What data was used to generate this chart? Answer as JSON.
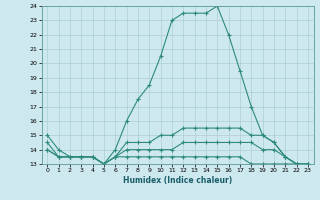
{
  "xlabel": "Humidex (Indice chaleur)",
  "x": [
    0,
    1,
    2,
    3,
    4,
    5,
    6,
    7,
    8,
    9,
    10,
    11,
    12,
    13,
    14,
    15,
    16,
    17,
    18,
    19,
    20,
    21,
    22,
    23
  ],
  "line_max": [
    15,
    14,
    13.5,
    13.5,
    13.5,
    13,
    14,
    16,
    17.5,
    18.5,
    20.5,
    23,
    23.5,
    23.5,
    23.5,
    24,
    22,
    19.5,
    17,
    15,
    14.5,
    13.5,
    13,
    13
  ],
  "line_q3": [
    14.5,
    13.5,
    13.5,
    13.5,
    13.5,
    13,
    13.5,
    14.5,
    14.5,
    14.5,
    15,
    15,
    15.5,
    15.5,
    15.5,
    15.5,
    15.5,
    15.5,
    15,
    15,
    14.5,
    13.5,
    13,
    13
  ],
  "line_med": [
    14,
    13.5,
    13.5,
    13.5,
    13.5,
    13,
    13.5,
    14,
    14,
    14,
    14,
    14,
    14.5,
    14.5,
    14.5,
    14.5,
    14.5,
    14.5,
    14.5,
    14,
    14,
    13.5,
    13,
    13
  ],
  "line_min": [
    14,
    13.5,
    13.5,
    13.5,
    13.5,
    13,
    13.5,
    13.5,
    13.5,
    13.5,
    13.5,
    13.5,
    13.5,
    13.5,
    13.5,
    13.5,
    13.5,
    13.5,
    13,
    13,
    13,
    13,
    13,
    13
  ],
  "line_color": "#2e8b7a",
  "bg_color": "#cde8ef",
  "grid_color": "#aecdd8",
  "ylim": [
    13,
    24
  ],
  "xlim": [
    -0.5,
    23.5
  ],
  "yticks": [
    13,
    14,
    15,
    16,
    17,
    18,
    19,
    20,
    21,
    22,
    23,
    24
  ],
  "xticks": [
    0,
    1,
    2,
    3,
    4,
    5,
    6,
    7,
    8,
    9,
    10,
    11,
    12,
    13,
    14,
    15,
    16,
    17,
    18,
    19,
    20,
    21,
    22,
    23
  ]
}
